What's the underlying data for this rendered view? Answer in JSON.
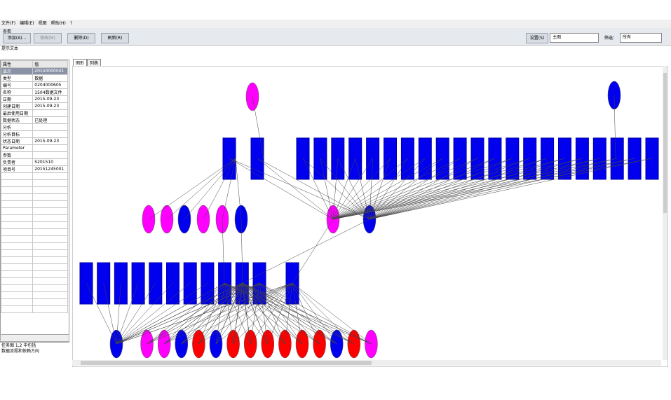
{
  "menu": [
    "文件(F)",
    "编辑(E)",
    "视图",
    "帮助(H)",
    "?"
  ],
  "toolbar_label": "查看",
  "buttons": [
    "添加(A)...",
    "修改(M)",
    "删除(D)",
    "刷新(R)"
  ],
  "right_controls": {
    "button": "设置(S)",
    "select1": "主图",
    "filter_label": "筛选：",
    "select2": "所有"
  },
  "status_text": "提示文本",
  "table": {
    "header": [
      "属性",
      "值"
    ],
    "rows": [
      [
        "显示",
        "20150000041"
      ],
      [
        "类型",
        "数据"
      ],
      [
        "编号",
        "0204000605"
      ],
      [
        "名称",
        "1504数据文件"
      ],
      [
        "日期",
        "2015-09-23"
      ],
      [
        "创建日期",
        "2015-09-23"
      ],
      [
        "最后使用日期",
        ""
      ],
      [
        "数据状态",
        "已处理"
      ],
      [
        "分析",
        ""
      ],
      [
        "分析目标",
        ""
      ],
      [
        "状态日期",
        "2015-09-23"
      ],
      [
        "Parameter",
        ""
      ],
      [
        "参数",
        ""
      ],
      [
        "负责者",
        "S201510"
      ],
      [
        "项目号",
        "20151245001"
      ]
    ]
  },
  "tabs": [
    "图形",
    "列表"
  ],
  "footer": [
    "任务图 1,2 中包括",
    "数据流程和依赖方向"
  ]
}
